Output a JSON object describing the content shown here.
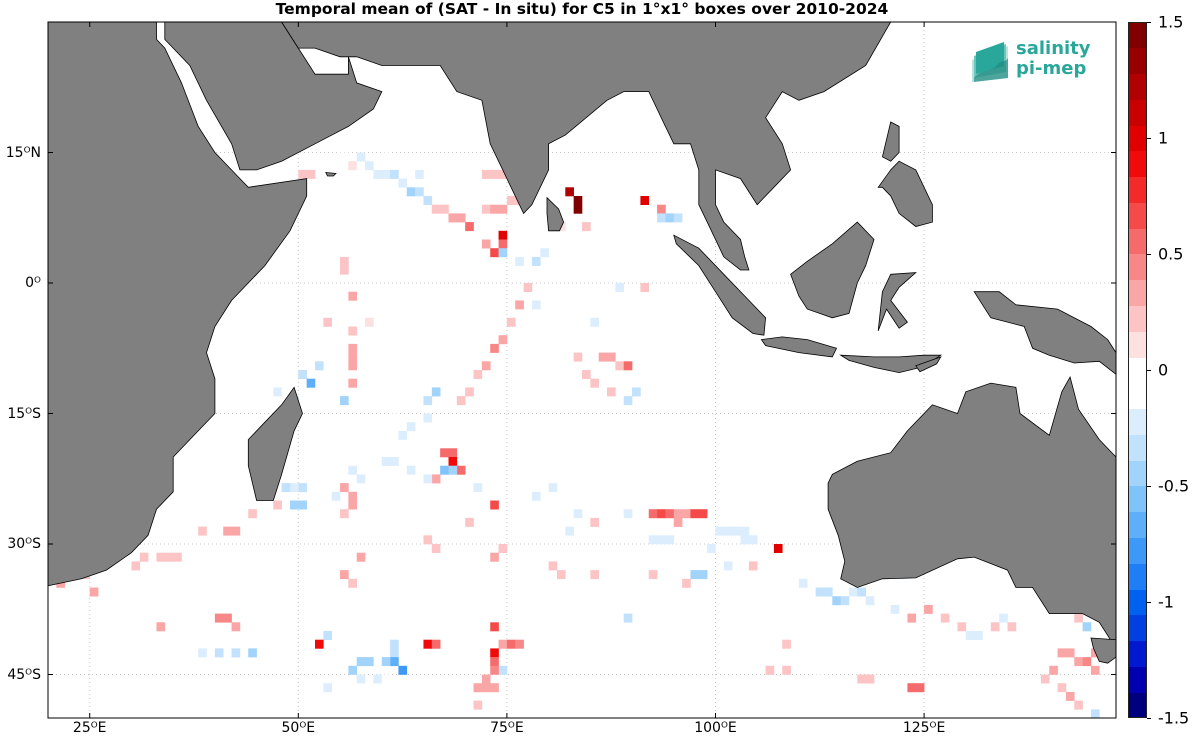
{
  "title": "Temporal mean of (SAT - In situ) for C5 in 1°x1° boxes over 2010-2024",
  "map": {
    "lon_range": [
      20,
      148
    ],
    "lat_range": [
      -50,
      30
    ],
    "lat_ticks": [
      {
        "lat": 15,
        "label": "15ᴼN"
      },
      {
        "lat": 0,
        "label": "0ᴼ"
      },
      {
        "lat": -15,
        "label": "15ᴼS"
      },
      {
        "lat": -30,
        "label": "30ᴼS"
      },
      {
        "lat": -45,
        "label": "45ᴼS"
      }
    ],
    "lon_ticks": [
      {
        "lon": 25,
        "label": "25ᴼE"
      },
      {
        "lon": 50,
        "label": "50ᴼE"
      },
      {
        "lon": 75,
        "label": "75ᴼE"
      },
      {
        "lon": 100,
        "label": "100ᴼE"
      },
      {
        "lon": 125,
        "label": "125ᴼE"
      }
    ],
    "grid": true,
    "land_color": "#808080"
  },
  "colorbar": {
    "min": -1.5,
    "max": 1.5,
    "labels": [
      "1.5",
      "1",
      "0.5",
      "0",
      "-0.5",
      "-1",
      "-1.5"
    ],
    "label_values": [
      1.5,
      1,
      0.5,
      0,
      -0.5,
      -1,
      -1.5
    ],
    "colors": [
      "#00007f",
      "#0000b0",
      "#0018d0",
      "#0040e0",
      "#0060f0",
      "#1f7ef5",
      "#3d98f7",
      "#5eaff8",
      "#80c2fa",
      "#a2d3fb",
      "#c1e1fc",
      "#dceefd",
      "#ffffff",
      "#ffffff",
      "#fde0e0",
      "#fcc4c4",
      "#faa6a6",
      "#f88888",
      "#f56a6a",
      "#f44a4a",
      "#f32a2a",
      "#f00a0a",
      "#e00000",
      "#c80000",
      "#b00000",
      "#980000",
      "#800000"
    ]
  },
  "logo": {
    "line1": "salinity",
    "line2": "pi-mep"
  },
  "chart_data": {
    "type": "heatmap",
    "title": "Temporal mean of (SAT - In situ) for C5 in 1°x1° boxes over 2010-2024",
    "value_range": [
      -1.5,
      1.5
    ],
    "cells": [
      [
        50,
        12,
        0.2
      ],
      [
        51,
        12,
        0.2
      ],
      [
        56,
        13,
        0.15
      ],
      [
        57,
        13,
        -0.15
      ],
      [
        58,
        13,
        -0.2
      ],
      [
        59,
        12,
        -0.2
      ],
      [
        60,
        12,
        -0.25
      ],
      [
        61,
        12,
        -0.3
      ],
      [
        62,
        11,
        -0.25
      ],
      [
        63,
        10,
        -0.5
      ],
      [
        64,
        10,
        -0.35
      ],
      [
        65,
        9,
        -0.3
      ],
      [
        55,
        14,
        -0.15
      ],
      [
        57,
        14,
        -0.2
      ],
      [
        60,
        14,
        -0.15
      ],
      [
        64,
        12,
        -0.2
      ],
      [
        66,
        8,
        0.2
      ],
      [
        67,
        8,
        0.2
      ],
      [
        68,
        7,
        0.3
      ],
      [
        69,
        7,
        0.3
      ],
      [
        70,
        6,
        0.55
      ],
      [
        72,
        12,
        0.2
      ],
      [
        73,
        12,
        0.25
      ],
      [
        74,
        12,
        0.2
      ],
      [
        72,
        8,
        0.2
      ],
      [
        73,
        8,
        0.3
      ],
      [
        74,
        8,
        0.3
      ],
      [
        75,
        9,
        0.2
      ],
      [
        76,
        9,
        0.2
      ],
      [
        77,
        9,
        0.25
      ],
      [
        74,
        5,
        1.0
      ],
      [
        74,
        4,
        0.5
      ],
      [
        73,
        3,
        0.7
      ],
      [
        74,
        3,
        -0.4
      ],
      [
        72,
        4,
        0.3
      ],
      [
        76,
        2,
        -0.2
      ],
      [
        78,
        2,
        -0.35
      ],
      [
        79,
        3,
        -0.2
      ],
      [
        82,
        10,
        1.2
      ],
      [
        83,
        9,
        1.4
      ],
      [
        83,
        8,
        1.4
      ],
      [
        80,
        7,
        0.2
      ],
      [
        81,
        6,
        0.15
      ],
      [
        84,
        6,
        0.2
      ],
      [
        90,
        9,
        -0.15
      ],
      [
        91,
        9,
        1.0
      ],
      [
        93,
        8,
        0.4
      ],
      [
        93,
        7,
        -0.3
      ],
      [
        94,
        7,
        -0.45
      ],
      [
        95,
        7,
        -0.3
      ],
      [
        96,
        6,
        -0.15
      ],
      [
        77,
        -1,
        0.2
      ],
      [
        76,
        -3,
        0.3
      ],
      [
        75,
        -5,
        0.25
      ],
      [
        74,
        -7,
        0.3
      ],
      [
        73,
        -8,
        0.4
      ],
      [
        72,
        -10,
        0.3
      ],
      [
        71,
        -11,
        0.25
      ],
      [
        70,
        -13,
        0.2
      ],
      [
        69,
        -14,
        0.2
      ],
      [
        78,
        -3,
        -0.2
      ],
      [
        80,
        -4,
        -0.15
      ],
      [
        83,
        -9,
        0.2
      ],
      [
        84,
        -11,
        0.2
      ],
      [
        85,
        -12,
        0.2
      ],
      [
        86,
        -9,
        0.3
      ],
      [
        87,
        -9,
        0.35
      ],
      [
        88,
        -10,
        0.2
      ],
      [
        89,
        -10,
        0.6
      ],
      [
        87,
        -13,
        0.2
      ],
      [
        91,
        -1,
        0.2
      ],
      [
        88,
        -1,
        -0.2
      ],
      [
        85,
        -5,
        -0.25
      ],
      [
        89,
        -14,
        -0.3
      ],
      [
        90,
        -13,
        -0.35
      ],
      [
        56,
        -2,
        0.3
      ],
      [
        56,
        -6,
        0.25
      ],
      [
        56,
        -8,
        0.35
      ],
      [
        56,
        -9,
        0.35
      ],
      [
        56,
        -10,
        0.35
      ],
      [
        56,
        -12,
        0.3
      ],
      [
        55,
        -14,
        -0.4
      ],
      [
        52,
        -10,
        -0.3
      ],
      [
        50,
        -11,
        -0.3
      ],
      [
        51,
        -12,
        -0.7
      ],
      [
        49,
        -14,
        -0.3
      ],
      [
        47,
        -13,
        -0.2
      ],
      [
        48,
        -13,
        -0.15
      ],
      [
        55,
        1,
        0.25
      ],
      [
        55,
        2,
        0.25
      ],
      [
        53,
        -5,
        0.2
      ],
      [
        58,
        -5,
        0.15
      ],
      [
        61,
        -16,
        -0.15
      ],
      [
        62,
        -18,
        -0.2
      ],
      [
        63,
        -17,
        -0.25
      ],
      [
        65,
        -16,
        -0.2
      ],
      [
        66,
        -13,
        -0.4
      ],
      [
        65,
        -14,
        -0.3
      ],
      [
        67,
        -20,
        0.5
      ],
      [
        68,
        -20,
        0.6
      ],
      [
        68,
        -21,
        0.9
      ],
      [
        69,
        -22,
        0.6
      ],
      [
        67,
        -22,
        -0.6
      ],
      [
        68,
        -22,
        -0.4
      ],
      [
        66,
        -23,
        0.3
      ],
      [
        65,
        -23,
        -0.25
      ],
      [
        63,
        -22,
        -0.2
      ],
      [
        61,
        -21,
        -0.25
      ],
      [
        60,
        -21,
        -0.2
      ],
      [
        58,
        -21,
        -0.15
      ],
      [
        57,
        -23,
        -0.2
      ],
      [
        56,
        -22,
        -0.25
      ],
      [
        55,
        -24,
        0.3
      ],
      [
        56,
        -25,
        0.35
      ],
      [
        56,
        -26,
        0.3
      ],
      [
        55,
        -27,
        0.2
      ],
      [
        54,
        -25,
        -0.2
      ],
      [
        53,
        -24,
        -0.15
      ],
      [
        50,
        -24,
        -0.3
      ],
      [
        49,
        -24,
        -0.25
      ],
      [
        48,
        -24,
        -0.3
      ],
      [
        49,
        -26,
        -0.4
      ],
      [
        50,
        -26,
        -0.45
      ],
      [
        47,
        -26,
        0.2
      ],
      [
        44,
        -27,
        0.2
      ],
      [
        42,
        -29,
        0.3
      ],
      [
        41,
        -29,
        0.3
      ],
      [
        38,
        -29,
        0.2
      ],
      [
        33,
        -32,
        0.25
      ],
      [
        34,
        -32,
        0.2
      ],
      [
        35,
        -32,
        0.2
      ],
      [
        31,
        -32,
        0.2
      ],
      [
        30,
        -33,
        0.2
      ],
      [
        24,
        -34,
        0.25
      ],
      [
        21,
        -35,
        0.3
      ],
      [
        25,
        -36,
        0.3
      ],
      [
        73,
        -26,
        0.7
      ],
      [
        71,
        -24,
        -0.2
      ],
      [
        74,
        -31,
        0.2
      ],
      [
        73,
        -32,
        0.3
      ],
      [
        70,
        -28,
        0.2
      ],
      [
        65,
        -30,
        0.2
      ],
      [
        66,
        -31,
        0.2
      ],
      [
        57,
        -32,
        0.3
      ],
      [
        55,
        -34,
        0.3
      ],
      [
        56,
        -35,
        0.2
      ],
      [
        78,
        -25,
        -0.2
      ],
      [
        80,
        -24,
        -0.2
      ],
      [
        83,
        -27,
        -0.25
      ],
      [
        85,
        -28,
        0.2
      ],
      [
        82,
        -29,
        -0.25
      ],
      [
        80,
        -33,
        0.2
      ],
      [
        81,
        -34,
        0.25
      ],
      [
        85,
        -34,
        0.2
      ],
      [
        89,
        -27,
        -0.2
      ],
      [
        92,
        -27,
        0.6
      ],
      [
        93,
        -27,
        0.65
      ],
      [
        94,
        -27,
        0.55
      ],
      [
        95,
        -27,
        0.35
      ],
      [
        96,
        -27,
        0.35
      ],
      [
        97,
        -27,
        0.7
      ],
      [
        98,
        -27,
        0.7
      ],
      [
        95,
        -28,
        0.3
      ],
      [
        92,
        -30,
        -0.25
      ],
      [
        93,
        -30,
        -0.2
      ],
      [
        94,
        -30,
        -0.25
      ],
      [
        100,
        -29,
        -0.2
      ],
      [
        101,
        -29,
        -0.2
      ],
      [
        102,
        -29,
        -0.2
      ],
      [
        103,
        -29,
        -0.2
      ],
      [
        103,
        -30,
        -0.2
      ],
      [
        104,
        -30,
        -0.25
      ],
      [
        100,
        -31,
        -0.15
      ],
      [
        99,
        -31,
        -0.2
      ],
      [
        101,
        -33,
        -0.2
      ],
      [
        107,
        -31,
        1.0
      ],
      [
        104,
        -33,
        0.2
      ],
      [
        98,
        -34,
        -0.5
      ],
      [
        97,
        -34,
        -0.5
      ],
      [
        96,
        -35,
        0.2
      ],
      [
        92,
        -34,
        0.2
      ],
      [
        89,
        -39,
        -0.3
      ],
      [
        118,
        -32,
        -0.15
      ],
      [
        120,
        -33,
        -0.2
      ],
      [
        122,
        -34,
        -0.2
      ],
      [
        110,
        -35,
        -0.2
      ],
      [
        112,
        -36,
        -0.3
      ],
      [
        113,
        -36,
        -0.3
      ],
      [
        114,
        -37,
        -0.4
      ],
      [
        115,
        -37,
        -0.3
      ],
      [
        116,
        -36,
        -0.25
      ],
      [
        117,
        -36,
        -0.3
      ],
      [
        118,
        -37,
        -0.2
      ],
      [
        121,
        -38,
        -0.25
      ],
      [
        123,
        -39,
        0.3
      ],
      [
        125,
        -38,
        0.3
      ],
      [
        127,
        -39,
        0.2
      ],
      [
        129,
        -40,
        0.25
      ],
      [
        130,
        -41,
        -0.25
      ],
      [
        131,
        -41,
        -0.25
      ],
      [
        133,
        -40,
        0.2
      ],
      [
        134,
        -39,
        -0.2
      ],
      [
        135,
        -40,
        0.2
      ],
      [
        138,
        -35,
        -0.2
      ],
      [
        140,
        -35,
        -0.3
      ],
      [
        142,
        -37,
        -0.2
      ],
      [
        143,
        -39,
        0.2
      ],
      [
        144,
        -40,
        -0.4
      ],
      [
        146,
        -38,
        -0.4
      ],
      [
        141,
        -43,
        0.3
      ],
      [
        142,
        -43,
        0.35
      ],
      [
        143,
        -44,
        0.3
      ],
      [
        144,
        -44,
        0.4
      ],
      [
        145,
        -43,
        0.3
      ],
      [
        145,
        -45,
        0.3
      ],
      [
        140,
        -45,
        0.3
      ],
      [
        139,
        -46,
        0.2
      ],
      [
        141,
        -47,
        0.2
      ],
      [
        142,
        -48,
        0.3
      ],
      [
        143,
        -49,
        0.25
      ],
      [
        145,
        -50,
        -0.3
      ],
      [
        124,
        -47,
        0.6
      ],
      [
        123,
        -47,
        0.6
      ],
      [
        117,
        -46,
        0.2
      ],
      [
        118,
        -46,
        0.2
      ],
      [
        112,
        -46,
        -0.15
      ],
      [
        106,
        -45,
        0.2
      ],
      [
        108,
        -45,
        0.2
      ],
      [
        108,
        -42,
        0.2
      ],
      [
        73,
        -40,
        0.7
      ],
      [
        74,
        -42,
        0.3
      ],
      [
        75,
        -42,
        0.6
      ],
      [
        76,
        -42,
        0.4
      ],
      [
        73,
        -43,
        0.9
      ],
      [
        73,
        -44,
        0.6
      ],
      [
        74,
        -45,
        -0.3
      ],
      [
        73,
        -45,
        0.4
      ],
      [
        72,
        -46,
        0.3
      ],
      [
        72,
        -47,
        0.3
      ],
      [
        71,
        -47,
        0.3
      ],
      [
        73,
        -47,
        0.3
      ],
      [
        71,
        -49,
        0.2
      ],
      [
        65,
        -42,
        0.9
      ],
      [
        66,
        -42,
        0.6
      ],
      [
        61,
        -42,
        -0.3
      ],
      [
        61,
        -43,
        -0.3
      ],
      [
        61,
        -44,
        -0.7
      ],
      [
        62,
        -45,
        -0.8
      ],
      [
        60,
        -44,
        -0.4
      ],
      [
        58,
        -44,
        -0.4
      ],
      [
        57,
        -44,
        -0.45
      ],
      [
        56,
        -45,
        -0.4
      ],
      [
        57,
        -46,
        -0.2
      ],
      [
        59,
        -46,
        -0.2
      ],
      [
        60,
        -46,
        -0.15
      ],
      [
        53,
        -41,
        -0.3
      ],
      [
        52,
        -42,
        0.9
      ],
      [
        53,
        -43,
        -0.15
      ],
      [
        55,
        -44,
        -0.15
      ],
      [
        53,
        -47,
        -0.2
      ],
      [
        44,
        -43,
        -0.4
      ],
      [
        42,
        -43,
        -0.3
      ],
      [
        40,
        -43,
        -0.3
      ],
      [
        38,
        -43,
        -0.2
      ],
      [
        40,
        -39,
        0.4
      ],
      [
        41,
        -39,
        0.4
      ],
      [
        42,
        -40,
        0.3
      ],
      [
        33,
        -40,
        0.3
      ]
    ]
  }
}
